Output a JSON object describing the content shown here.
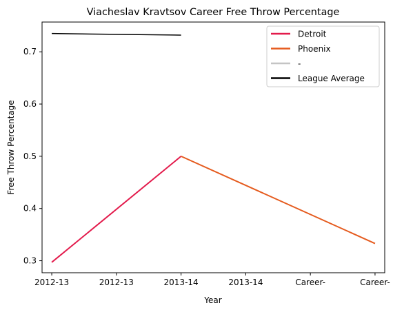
{
  "chart_data": {
    "type": "line",
    "title": "Viacheslav Kravtsov Career Free Throw Percentage",
    "xlabel": "Year",
    "ylabel": "Free Throw Percentage",
    "x_tick_labels": [
      "2012-13",
      "2012-13",
      "2013-14",
      "2013-14",
      "Career-",
      "Career-"
    ],
    "x_range": [
      -0.15,
      5.15
    ],
    "y_ticks": [
      0.3,
      0.4,
      0.5,
      0.6,
      0.7
    ],
    "y_tick_labels": [
      "0.3",
      "0.4",
      "0.5",
      "0.6",
      "0.7"
    ],
    "ylim": [
      0.277,
      0.757
    ],
    "grid": false,
    "legend_position": "top-right",
    "series": [
      {
        "name": "Detroit",
        "color": "#e31b4c",
        "line_width": 2,
        "x": [
          0,
          2
        ],
        "y": [
          0.297,
          0.5
        ]
      },
      {
        "name": "Phoenix",
        "color": "#e55b1e",
        "line_width": 2,
        "x": [
          2,
          5
        ],
        "y": [
          0.5,
          0.333
        ]
      },
      {
        "name": "-",
        "color": "#c4c4c4",
        "line_width": 2,
        "x": [],
        "y": []
      },
      {
        "name": "League Average",
        "color": "#000000",
        "line_width": 1.5,
        "x": [
          0,
          2
        ],
        "y": [
          0.735,
          0.732
        ]
      }
    ]
  }
}
